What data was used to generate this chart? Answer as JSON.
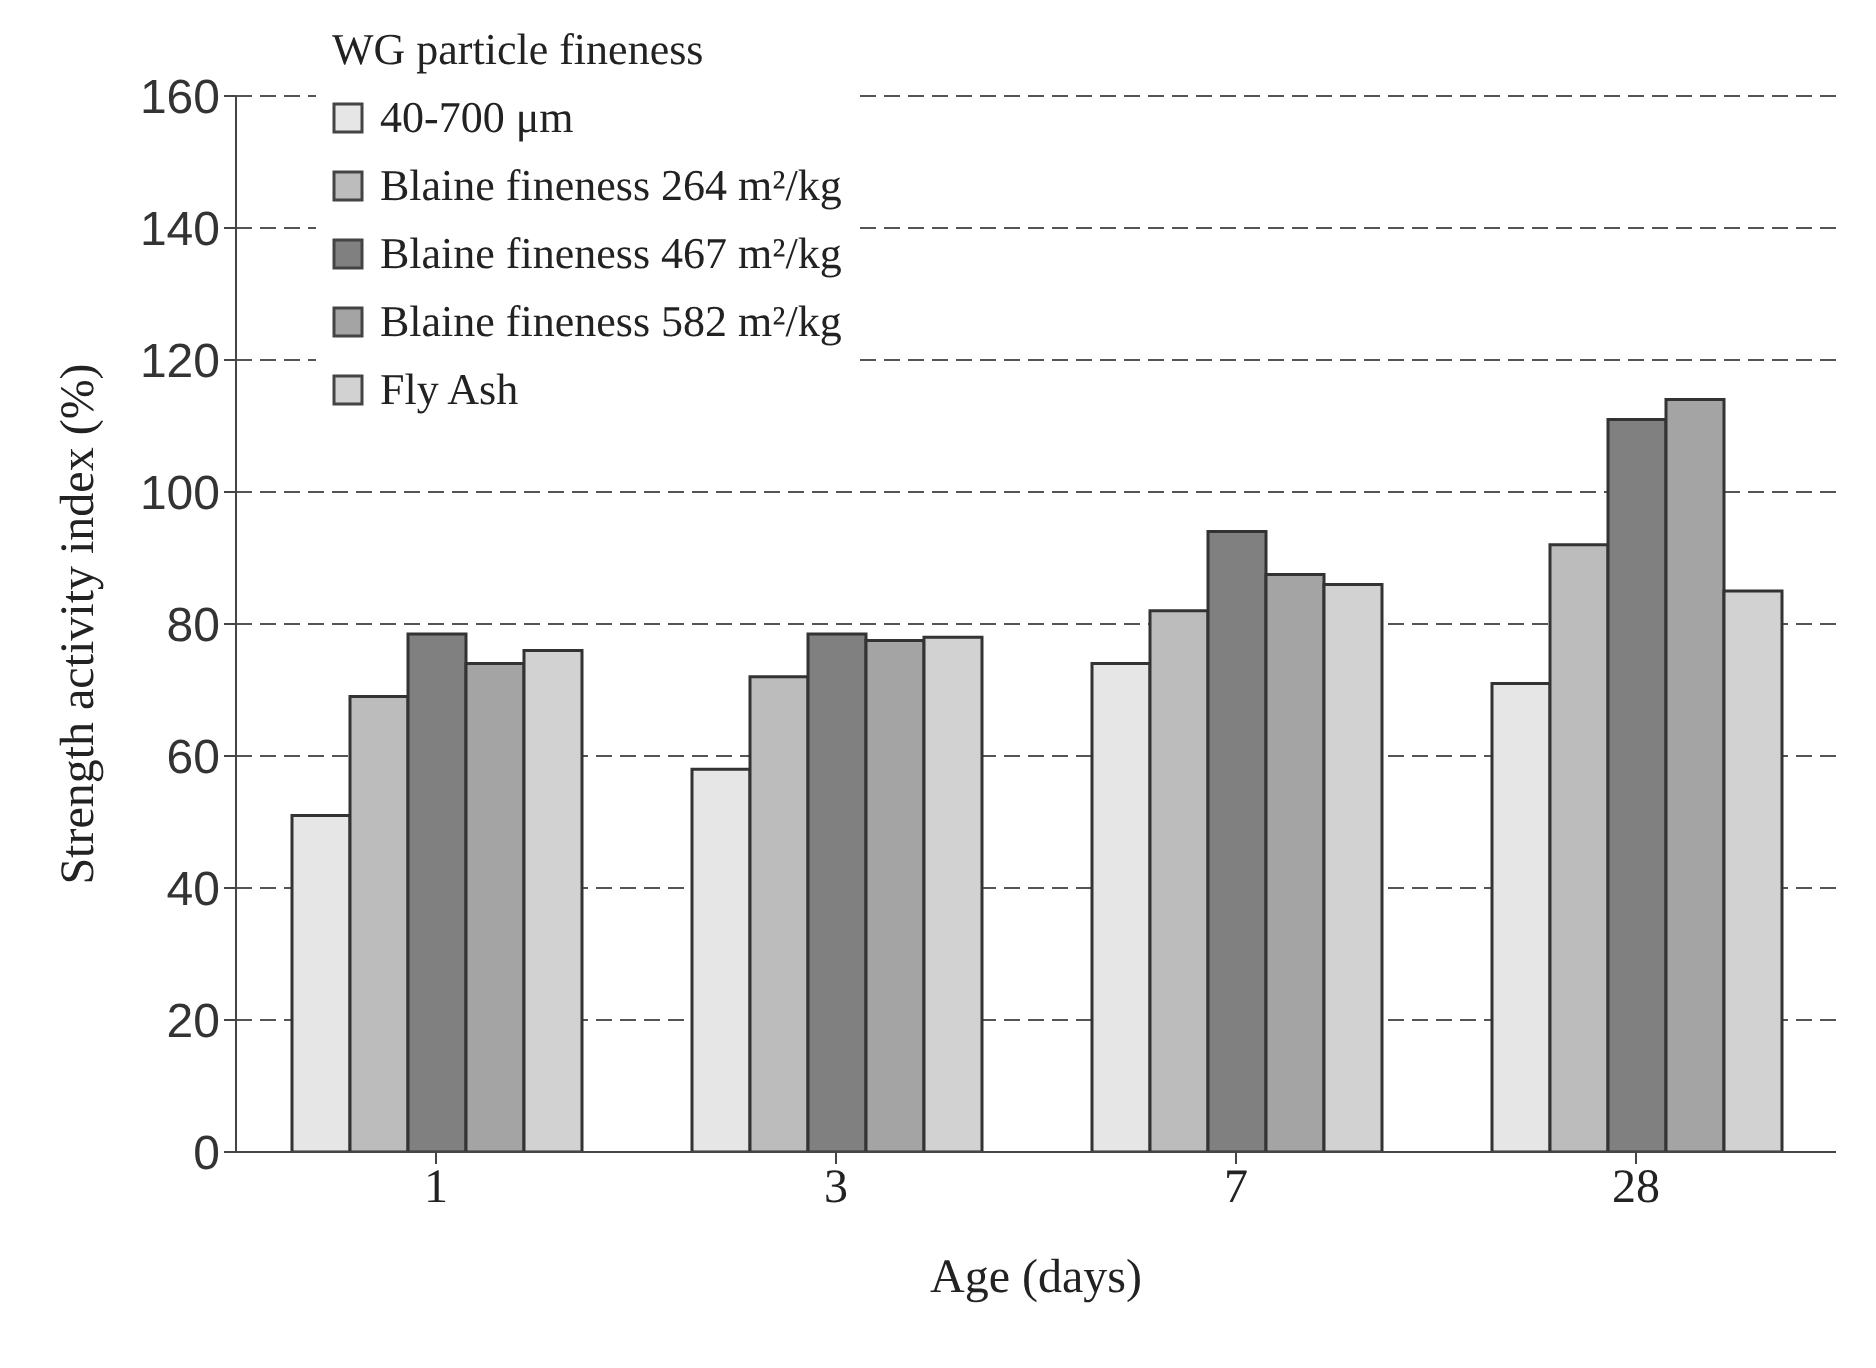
{
  "chart_data": {
    "type": "bar",
    "xlabel": "Age (days)",
    "ylabel": "Strength activity index (%)",
    "legend_title": "WG particle fineness",
    "categories": [
      "1",
      "3",
      "7",
      "28"
    ],
    "series": [
      {
        "name": "40-700 μm",
        "color": "#e6e6e6",
        "values": [
          51,
          58,
          74,
          71
        ]
      },
      {
        "name": "Blaine fineness 264 m²/kg",
        "color": "#bcbcbc",
        "values": [
          69,
          72,
          82,
          92
        ]
      },
      {
        "name": "Blaine fineness 467 m²/kg",
        "color": "#808080",
        "values": [
          78.5,
          78.5,
          94,
          111
        ]
      },
      {
        "name": "Blaine fineness 582 m²/kg",
        "color": "#a4a4a4",
        "values": [
          74,
          77.5,
          87.5,
          114
        ]
      },
      {
        "name": "Fly Ash",
        "color": "#d2d2d2",
        "values": [
          76,
          78,
          86,
          85
        ]
      }
    ],
    "ylim": [
      0,
      160
    ],
    "yticks": [
      0,
      20,
      40,
      60,
      80,
      100,
      120,
      140,
      160
    ],
    "grid": "y",
    "legend": "top left"
  }
}
